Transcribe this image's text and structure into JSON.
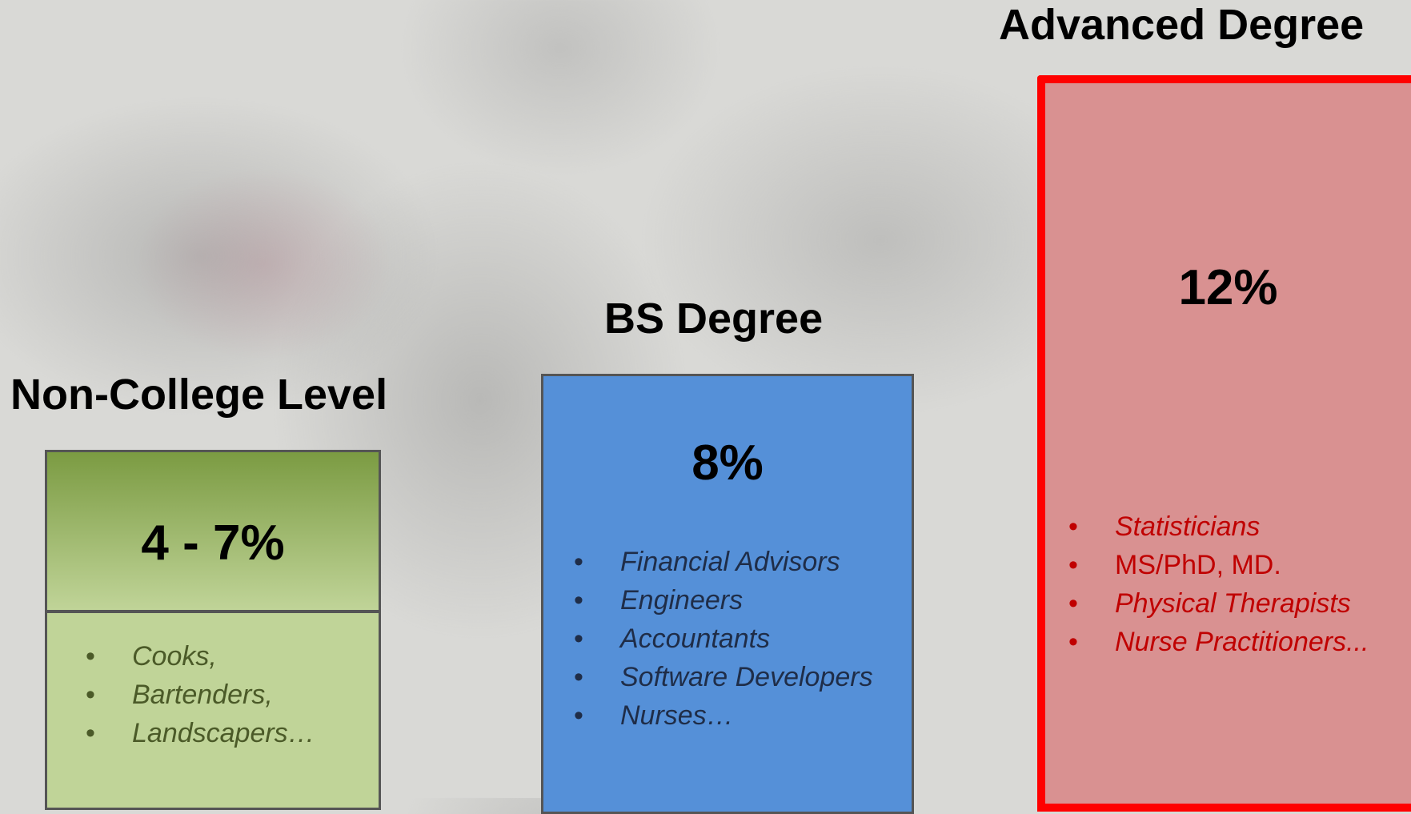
{
  "columns": [
    {
      "title": "Non-College Level",
      "rate": "4 - 7%",
      "items": [
        "Cooks,",
        "Bartenders,",
        "Landscapers…"
      ]
    },
    {
      "title": "BS Degree",
      "rate": "8%",
      "items": [
        "Financial Advisors",
        "Engineers",
        "Accountants",
        "Software Developers",
        "Nurses…"
      ]
    },
    {
      "title": "Advanced Degree",
      "rate": "12%",
      "items": [
        "Statisticians",
        "MS/PhD, MD.",
        "Physical Therapists",
        "Nurse Practitioners..."
      ]
    }
  ]
}
